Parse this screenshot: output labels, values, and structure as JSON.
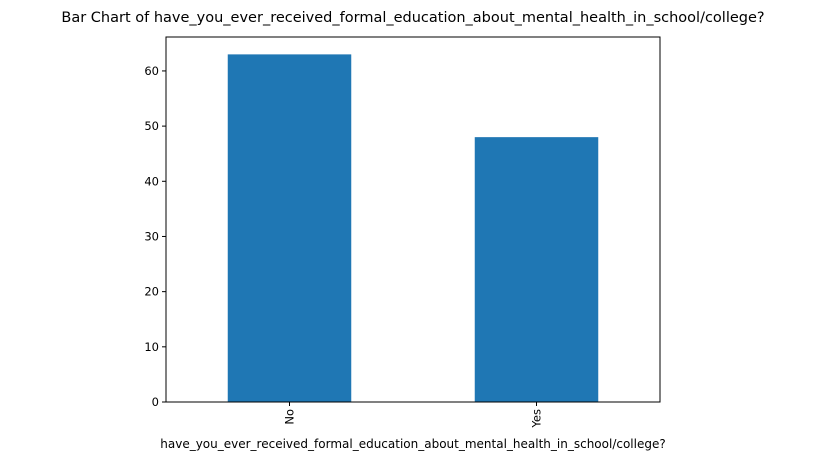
{
  "chart_data": {
    "type": "bar",
    "title": "Bar Chart of have_you_ever_received_formal_education_about_mental_health_in_school/college?",
    "xlabel": "have_you_ever_received_formal_education_about_mental_health_in_school/college?",
    "ylabel": "",
    "categories": [
      "No",
      "Yes"
    ],
    "values": [
      63,
      48
    ],
    "ylim": [
      0,
      66.15
    ],
    "yticks": [
      0,
      10,
      20,
      30,
      40,
      50,
      60
    ],
    "grid": false,
    "bar_color": "#1f77b4",
    "xtick_rotation": "vertical"
  }
}
